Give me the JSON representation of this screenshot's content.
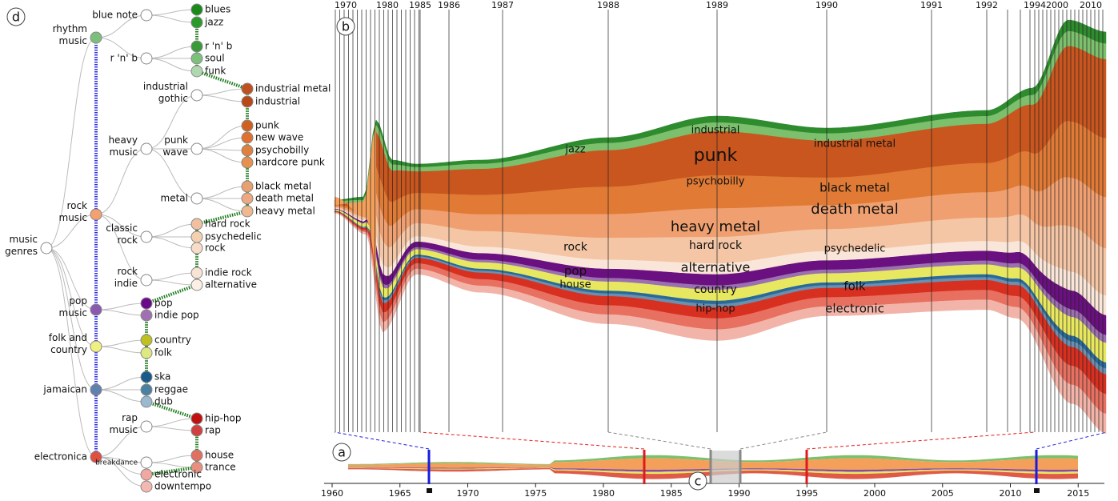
{
  "panels": {
    "a": "a",
    "b": "b",
    "c": "c",
    "d": "d"
  },
  "tree": {
    "nodes": [
      {
        "label": [
          "music",
          "genres"
        ]
      },
      {
        "label": [
          "rhythm",
          "music"
        ]
      },
      {
        "label": [
          "blue note"
        ]
      },
      {
        "label": [
          "blues"
        ]
      },
      {
        "label": [
          "jazz"
        ]
      },
      {
        "label": [
          "r 'n' b"
        ]
      },
      {
        "label": [
          "r 'n' b"
        ]
      },
      {
        "label": [
          "soul"
        ]
      },
      {
        "label": [
          "funk"
        ]
      },
      {
        "label": [
          "rock",
          "music"
        ]
      },
      {
        "label": [
          "industrial",
          "gothic"
        ]
      },
      {
        "label": [
          "industrial metal"
        ]
      },
      {
        "label": [
          "industrial"
        ]
      },
      {
        "label": [
          "heavy",
          "music"
        ]
      },
      {
        "label": [
          "punk",
          "wave"
        ]
      },
      {
        "label": [
          "punk"
        ]
      },
      {
        "label": [
          "new wave"
        ]
      },
      {
        "label": [
          "psychobilly"
        ]
      },
      {
        "label": [
          "hardcore punk"
        ]
      },
      {
        "label": [
          "metal"
        ]
      },
      {
        "label": [
          "black metal"
        ]
      },
      {
        "label": [
          "death metal"
        ]
      },
      {
        "label": [
          "heavy metal"
        ]
      },
      {
        "label": [
          "classic",
          "rock"
        ]
      },
      {
        "label": [
          "hard rock"
        ]
      },
      {
        "label": [
          "psychedelic"
        ]
      },
      {
        "label": [
          "rock"
        ]
      },
      {
        "label": [
          "rock",
          "indie"
        ]
      },
      {
        "label": [
          "indie rock"
        ]
      },
      {
        "label": [
          "alternative"
        ]
      },
      {
        "label": [
          "pop",
          "music"
        ]
      },
      {
        "label": [
          "pop"
        ]
      },
      {
        "label": [
          "indie pop"
        ]
      },
      {
        "label": [
          "folk and",
          "country"
        ]
      },
      {
        "label": [
          "country"
        ]
      },
      {
        "label": [
          "folk"
        ]
      },
      {
        "label": [
          "jamaican"
        ]
      },
      {
        "label": [
          "ska"
        ]
      },
      {
        "label": [
          "reggae"
        ]
      },
      {
        "label": [
          "dub"
        ]
      },
      {
        "label": [
          "rap",
          "music"
        ]
      },
      {
        "label": [
          "hip-hop"
        ]
      },
      {
        "label": [
          "rap"
        ]
      },
      {
        "label": [
          "electronica"
        ]
      },
      {
        "label": [
          "breakdance"
        ]
      },
      {
        "label": [
          "house"
        ]
      },
      {
        "label": [
          "trance"
        ]
      },
      {
        "label": [
          "electronic"
        ]
      },
      {
        "label": [
          "downtempo"
        ]
      }
    ]
  },
  "timeline": {
    "years": [
      1970,
      1980,
      1985,
      1986,
      1987,
      1988,
      1989,
      1990,
      1991,
      1992,
      1994,
      2000,
      2010
    ]
  },
  "streams": {
    "labels": [
      "industrial",
      "punk",
      "jazz",
      "industrial metal",
      "psychobilly",
      "black metal",
      "death metal",
      "heavy metal",
      "hard rock",
      "rock",
      "psychedelic",
      "alternative",
      "pop",
      "house",
      "country",
      "folk",
      "hip-hop",
      "electronic"
    ]
  },
  "overview": {
    "ticks": [
      1960,
      1965,
      1970,
      1975,
      1980,
      1985,
      1990,
      1995,
      2000,
      2005,
      2010,
      2015
    ]
  }
}
